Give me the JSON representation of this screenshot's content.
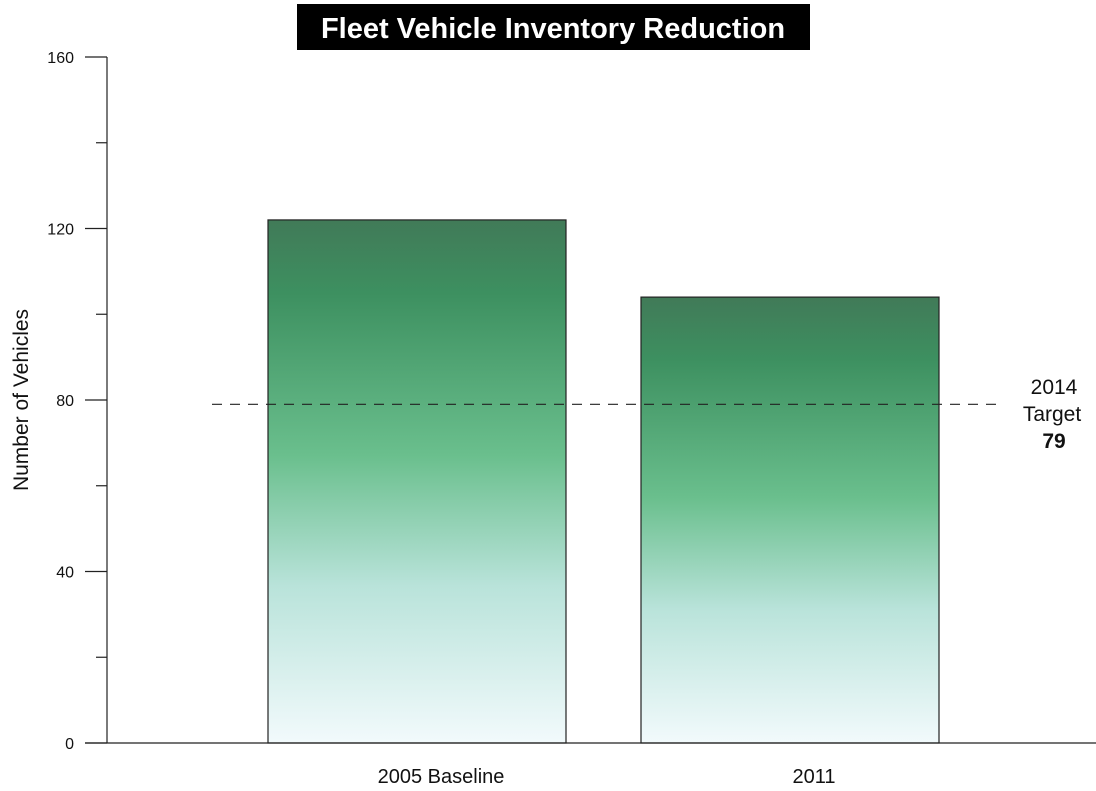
{
  "chart_data": {
    "type": "bar",
    "title": "Fleet Vehicle Inventory Reduction",
    "xlabel": "",
    "ylabel": "Number of Vehicles",
    "categories": [
      "2005 Baseline",
      "2011"
    ],
    "values": [
      122,
      104
    ],
    "ylim": [
      0,
      160
    ],
    "yticks": [
      0,
      40,
      80,
      120,
      160
    ],
    "yticks_minor": [
      20,
      60,
      100,
      140
    ],
    "grid": false,
    "legend": "none",
    "target": {
      "label_line1": "2014",
      "label_line2": "Target",
      "value": 79,
      "value_label": "79",
      "style": "dashed"
    },
    "colors": {
      "bar_top": "#417a58",
      "bar_mid": "#6abf8d",
      "bar_bottom": "#f2fafc",
      "bar_outline": "#222222",
      "title_bg": "#000000",
      "title_text": "#ffffff",
      "axis": "#222222"
    }
  }
}
